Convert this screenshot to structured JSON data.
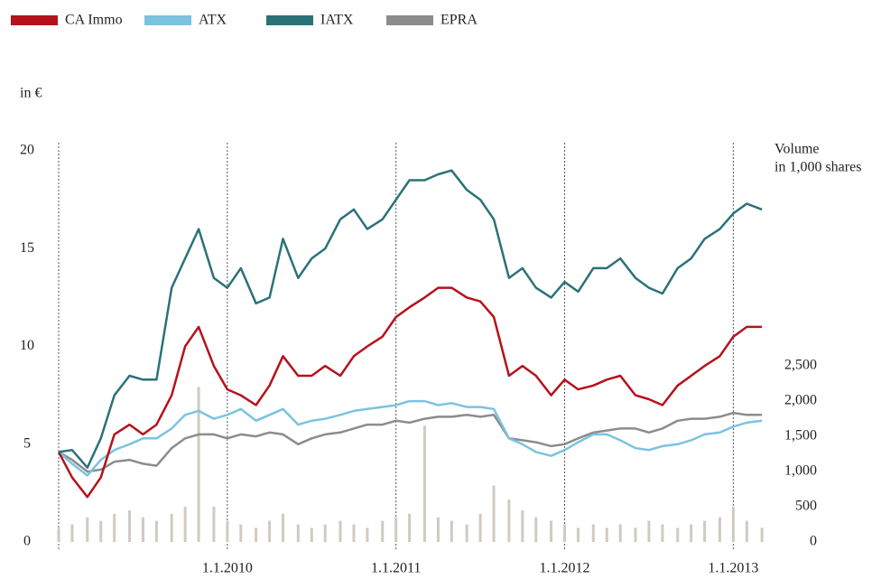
{
  "chart_data": {
    "type": "line",
    "ylabel": "in €",
    "y2label": [
      "Volume",
      "in 1,000 shares"
    ],
    "x": [
      2009,
      2009.08,
      2009.17,
      2009.25,
      2009.33,
      2009.42,
      2009.5,
      2009.58,
      2009.67,
      2009.75,
      2009.83,
      2009.92,
      2010,
      2010.08,
      2010.17,
      2010.25,
      2010.33,
      2010.42,
      2010.5,
      2010.58,
      2010.67,
      2010.75,
      2010.83,
      2010.92,
      2011,
      2011.08,
      2011.17,
      2011.25,
      2011.33,
      2011.42,
      2011.5,
      2011.58,
      2011.67,
      2011.75,
      2011.83,
      2011.92,
      2012,
      2012.08,
      2012.17,
      2012.25,
      2012.33,
      2012.42,
      2012.5,
      2012.58,
      2012.67,
      2012.75,
      2012.83,
      2012.92,
      2013,
      2013.08,
      2013.17
    ],
    "series": [
      {
        "name": "CA Immo",
        "color": "#b5121b",
        "values": [
          4.6,
          3.3,
          2.3,
          3.3,
          5.5,
          6,
          5.5,
          6,
          7.5,
          10,
          11,
          9,
          7.8,
          7.5,
          7,
          8,
          9.5,
          8.5,
          8.5,
          9,
          8.5,
          9.5,
          10,
          10.5,
          11.5,
          12,
          12.5,
          13,
          13,
          12.5,
          12.3,
          11.5,
          8.5,
          9,
          8.5,
          7.5,
          8.3,
          7.8,
          8,
          8.3,
          8.5,
          7.5,
          7.3,
          7,
          8,
          8.5,
          9,
          9.5,
          10.5,
          11,
          11
        ]
      },
      {
        "name": "ATX",
        "color": "#7cc3e0",
        "values": [
          4.6,
          4.0,
          3.4,
          4.2,
          4.7,
          5,
          5.3,
          5.3,
          5.8,
          6.5,
          6.7,
          6.3,
          6.5,
          6.8,
          6.2,
          6.5,
          6.8,
          6.0,
          6.2,
          6.3,
          6.5,
          6.7,
          6.8,
          6.9,
          7.0,
          7.2,
          7.2,
          7.0,
          7.1,
          6.9,
          6.9,
          6.8,
          5.3,
          5,
          4.6,
          4.4,
          4.7,
          5.1,
          5.5,
          5.5,
          5.2,
          4.8,
          4.7,
          4.9,
          5,
          5.2,
          5.5,
          5.6,
          5.9,
          6.1,
          6.2
        ]
      },
      {
        "name": "IATX",
        "color": "#2b7278",
        "values": [
          4.6,
          4.7,
          3.8,
          5.3,
          7.5,
          8.5,
          8.3,
          8.3,
          13,
          14.5,
          16,
          13.5,
          13,
          14,
          12.2,
          12.5,
          15.5,
          13.5,
          14.5,
          15,
          16.5,
          17,
          16,
          16.5,
          17.5,
          18.5,
          18.5,
          18.8,
          19,
          18,
          17.5,
          16.5,
          13.5,
          14,
          13,
          12.5,
          13.3,
          12.8,
          14,
          14,
          14.5,
          13.5,
          13,
          12.7,
          14,
          14.5,
          15.5,
          16,
          16.8,
          17.3,
          17
        ]
      },
      {
        "name": "EPRA",
        "color": "#8c8c8c",
        "values": [
          4.6,
          4.2,
          3.6,
          3.7,
          4.1,
          4.2,
          4.0,
          3.9,
          4.8,
          5.3,
          5.5,
          5.5,
          5.3,
          5.5,
          5.4,
          5.6,
          5.5,
          5.0,
          5.3,
          5.5,
          5.6,
          5.8,
          6.0,
          6.0,
          6.2,
          6.1,
          6.3,
          6.4,
          6.4,
          6.5,
          6.4,
          6.5,
          5.3,
          5.2,
          5.1,
          4.9,
          5.0,
          5.3,
          5.6,
          5.7,
          5.8,
          5.8,
          5.6,
          5.8,
          6.2,
          6.3,
          6.3,
          6.4,
          6.6,
          6.5,
          6.5
        ]
      }
    ],
    "volume_color": "#cfcbc3",
    "volume_values": [
      200,
      250,
      350,
      300,
      400,
      450,
      350,
      300,
      400,
      500,
      2200,
      500,
      300,
      250,
      200,
      300,
      400,
      250,
      200,
      250,
      300,
      250,
      200,
      300,
      350,
      400,
      1650,
      350,
      300,
      250,
      400,
      800,
      600,
      450,
      350,
      300,
      250,
      200,
      250,
      200,
      250,
      200,
      300,
      250,
      200,
      250,
      300,
      350,
      500,
      300,
      200
    ],
    "xlim": [
      2009,
      2013.18
    ],
    "xticks": [
      {
        "value": 2010,
        "label": "1.1.2010"
      },
      {
        "value": 2011,
        "label": "1.1.2011"
      },
      {
        "value": 2012,
        "label": "1.1.2012"
      },
      {
        "value": 2013,
        "label": "1.1.2013"
      }
    ],
    "ylim": [
      0,
      20
    ],
    "yticks": [
      0,
      5,
      10,
      15,
      20
    ],
    "y2lim": [
      0,
      5550
    ],
    "y2ticks": [
      0,
      500,
      {
        "value": 1000,
        "label": "1,000"
      },
      {
        "value": 1500,
        "label": "1,500"
      },
      {
        "value": 2000,
        "label": "2,000"
      },
      {
        "value": 2500,
        "label": "2,500"
      }
    ],
    "grid": true
  }
}
